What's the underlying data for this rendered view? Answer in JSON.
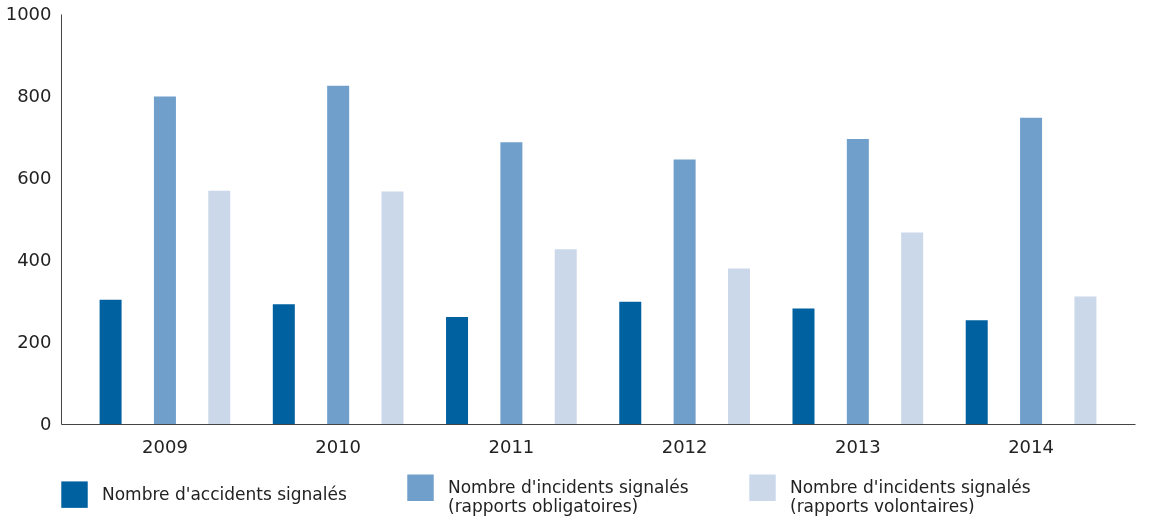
{
  "chart_data": {
    "type": "bar",
    "categories": [
      "2009",
      "2010",
      "2011",
      "2012",
      "2013",
      "2014"
    ],
    "series": [
      {
        "name": "Nombre d'accidents signalés",
        "color": "#0061a1",
        "values": [
          303,
          292,
          261,
          298,
          282,
          253
        ]
      },
      {
        "name": "Nombre d'incidents signalés\n(rapports obligatoires)",
        "color": "#709fcb",
        "values": [
          799,
          825,
          687,
          645,
          695,
          747
        ]
      },
      {
        "name": "Nombre d'incidents signalés\n(rapports volontaires)",
        "color": "#cbd8ea",
        "values": [
          569,
          567,
          426,
          379,
          467,
          311
        ]
      }
    ],
    "ylim": [
      0,
      1000
    ],
    "yticks": [
      0,
      200,
      400,
      600,
      800,
      1000
    ],
    "grid": false,
    "legend": "bottom"
  }
}
